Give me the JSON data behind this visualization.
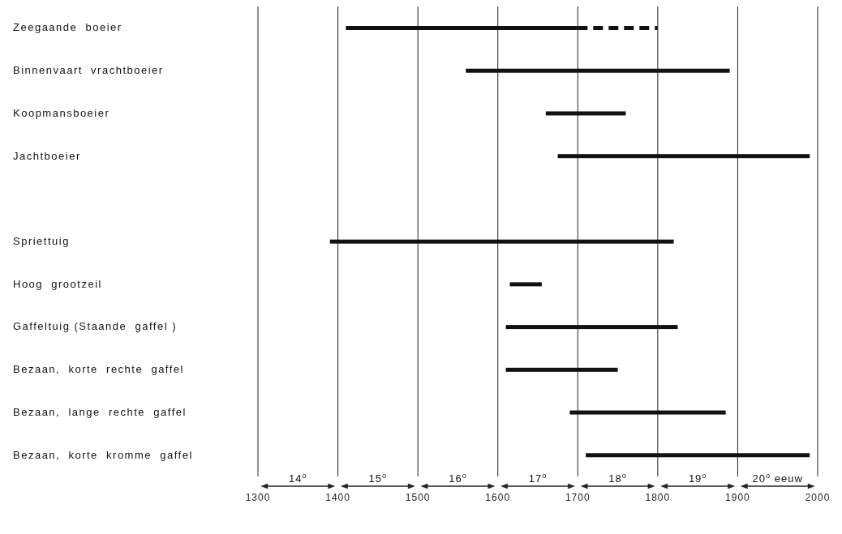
{
  "chart_data": {
    "type": "bar",
    "orientation": "horizontal",
    "categories": [
      "Zeegaande  boeier",
      "Binnenvaart  vrachtboeier",
      "Koopmansboeier",
      "Jachtboeier",
      null,
      "Spriettuig",
      "Hoog  grootzeil",
      "Gaffeltuig (Staande  gaffel )",
      "Bezaan,  korte  rechte  gaffel",
      "Bezaan,  lange  rechte  gaffel",
      "Bezaan,  korte  kromme  gaffel"
    ],
    "series": [
      {
        "color": "#111111",
        "line_style": "solid",
        "base": [
          1410,
          1560,
          1660,
          1675,
          null,
          1390,
          1615,
          1610,
          1610,
          1690,
          1710
        ],
        "values": [
          290,
          330,
          100,
          315,
          null,
          430,
          40,
          215,
          140,
          195,
          280
        ]
      },
      {
        "color": "#111111",
        "line_style": "dashed",
        "base": [
          1700,
          null,
          null,
          null,
          null,
          null,
          null,
          null,
          null,
          null,
          null
        ],
        "values": [
          100,
          null,
          null,
          null,
          null,
          null,
          null,
          null,
          null,
          null,
          null
        ]
      }
    ],
    "xlim": [
      1300,
      2000
    ],
    "xticks": [
      1300,
      1400,
      1500,
      1600,
      1700,
      1800,
      1900,
      2000
    ],
    "grid": "x",
    "legend": false,
    "annotations": [
      "14$^{o}$",
      "15$^{o}$",
      "16$^{o}$",
      "17$^{o}$",
      "18$^{o}$",
      "19$^{o}$",
      "20$^{o}$ eeuw"
    ]
  }
}
